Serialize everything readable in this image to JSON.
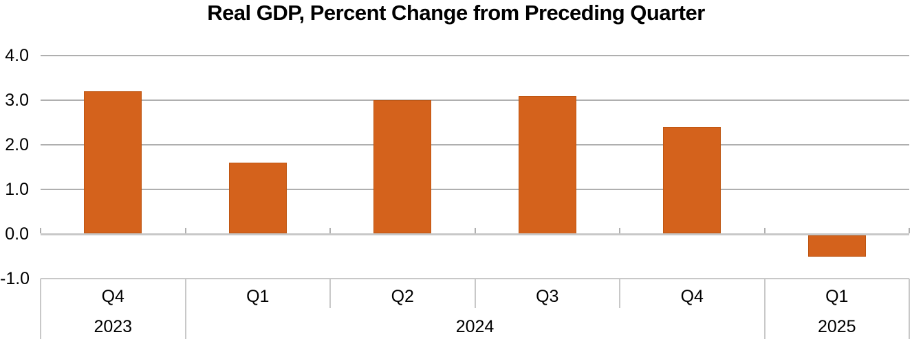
{
  "chart_data": {
    "type": "bar",
    "title": "Real GDP, Percent Change from Preceding Quarter",
    "categories": [
      "Q4",
      "Q1",
      "Q2",
      "Q3",
      "Q4",
      "Q1"
    ],
    "values": [
      3.2,
      1.6,
      3.0,
      3.1,
      2.4,
      -0.5
    ],
    "year_groups": [
      {
        "label": "2023",
        "start": 0,
        "count": 1
      },
      {
        "label": "2024",
        "start": 1,
        "count": 4
      },
      {
        "label": "2025",
        "start": 5,
        "count": 1
      }
    ],
    "y_tick_labels": [
      "4.0",
      "3.0",
      "2.0",
      "1.0",
      "0.0",
      "-1.0"
    ],
    "y_tick_values": [
      4.0,
      3.0,
      2.0,
      1.0,
      0.0,
      -1.0
    ],
    "ylim": [
      -1.0,
      4.0
    ],
    "grid": true,
    "legend": "none",
    "colors": {
      "bar_fill": "#D4621C",
      "bar_border": "#BE5511",
      "gridline": "#AFAFAF",
      "axis_line": "#C8C8C8",
      "text": "#000000",
      "background": "#FFFFFF"
    }
  }
}
